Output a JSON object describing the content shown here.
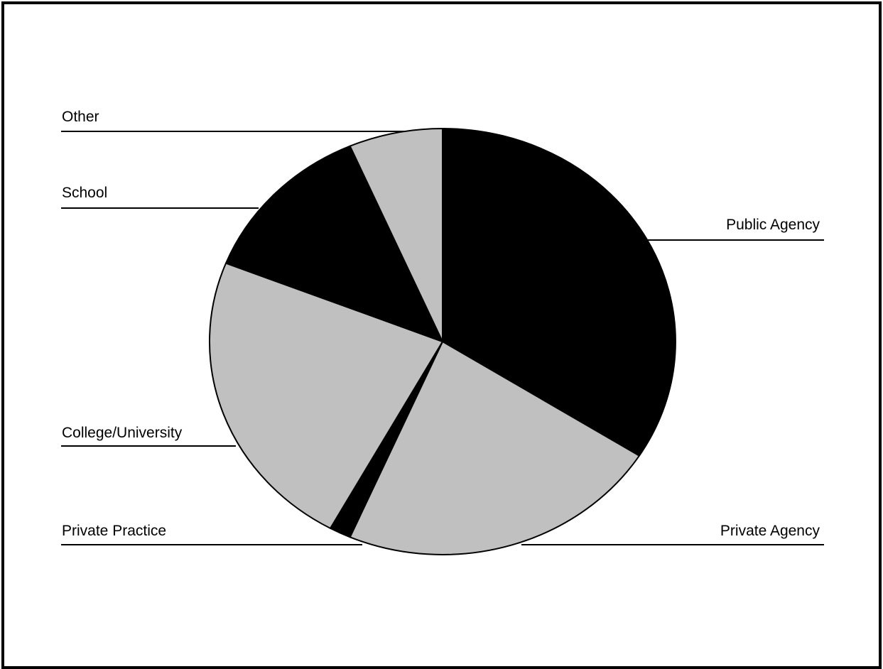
{
  "chart_data": {
    "type": "pie",
    "title": "",
    "start_angle_deg": 0,
    "direction": "clockwise",
    "slices": [
      {
        "label": "Public Agency",
        "value": 34.0,
        "color": "#000000"
      },
      {
        "label": "Private Agency",
        "value": 22.5,
        "color": "#c0c0c0"
      },
      {
        "label": "Private Practice",
        "value": 1.5,
        "color": "#000000"
      },
      {
        "label": "College/University",
        "value": 23.0,
        "color": "#c0c0c0"
      },
      {
        "label": "School",
        "value": 12.5,
        "color": "#000000"
      },
      {
        "label": "Other",
        "value": 6.5,
        "color": "#c0c0c0"
      }
    ],
    "legend": "none",
    "labels": "leader-lines"
  }
}
